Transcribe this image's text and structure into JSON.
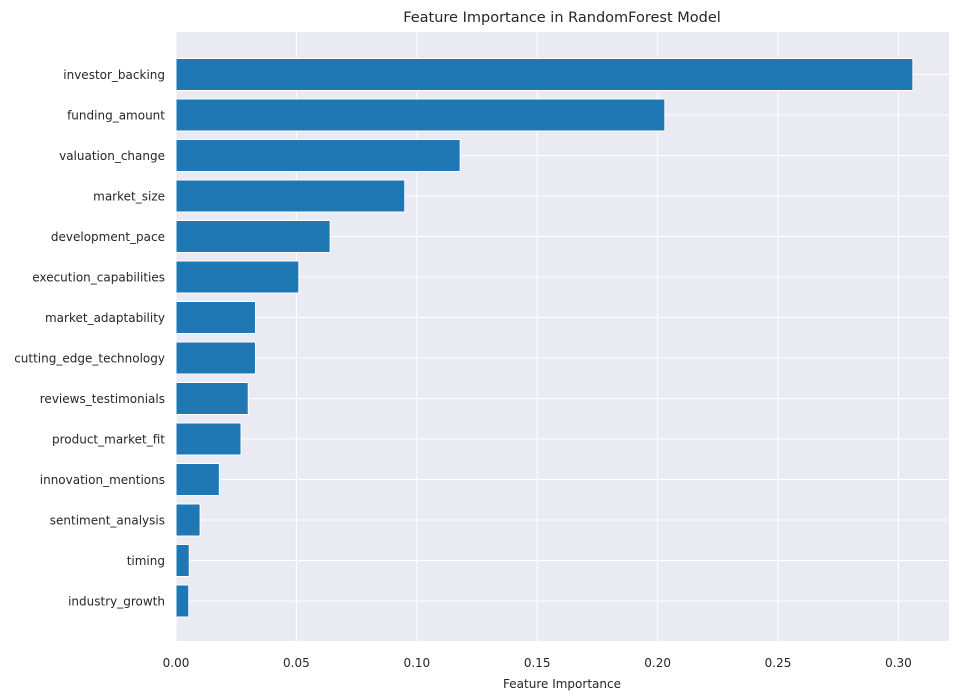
{
  "chart_data": {
    "type": "bar",
    "orientation": "horizontal",
    "title": "Feature Importance in RandomForest Model",
    "xlabel": "Feature Importance",
    "ylabel": "",
    "xlim": [
      0,
      0.321
    ],
    "xticks": [
      "0.00",
      "0.05",
      "0.10",
      "0.15",
      "0.20",
      "0.25",
      "0.30"
    ],
    "grid": true,
    "bar_color": "#1f77b4",
    "background_color": "#eaeaf2",
    "grid_color": "#ffffff",
    "categories": [
      "investor_backing",
      "funding_amount",
      "valuation_change",
      "market_size",
      "development_pace",
      "execution_capabilities",
      "market_adaptability",
      "cutting_edge_technology",
      "reviews_testimonials",
      "product_market_fit",
      "innovation_mentions",
      "sentiment_analysis",
      "timing",
      "industry_growth"
    ],
    "values": [
      0.306,
      0.203,
      0.118,
      0.095,
      0.064,
      0.051,
      0.033,
      0.033,
      0.03,
      0.027,
      0.018,
      0.01,
      0.0055,
      0.0053
    ]
  }
}
